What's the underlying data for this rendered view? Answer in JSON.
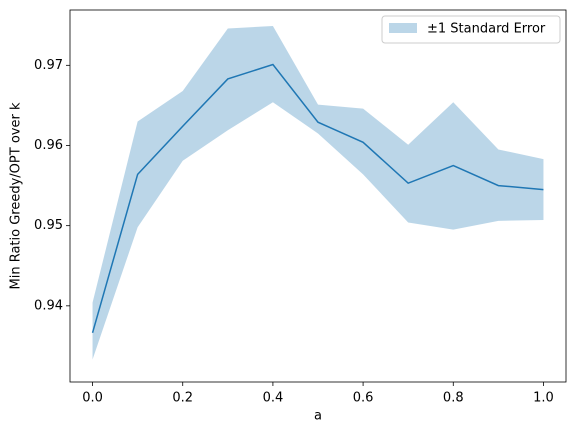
{
  "chart_data": {
    "type": "line",
    "x_label": "a",
    "y_label": "Min Ratio Greedy/OPT over k",
    "x": [
      0,
      0.1,
      0.2,
      0.3,
      0.4,
      0.5,
      0.6,
      0.7,
      0.8,
      0.9,
      1.0
    ],
    "series": [
      {
        "color": "#1f77b4",
        "values": [
          0.93664,
          0.9564,
          0.9624,
          0.9683,
          0.9701,
          0.9629,
          0.9604,
          0.9553,
          0.9575,
          0.955,
          0.9545
        ]
      }
    ],
    "band": {
      "name": "±1 Standard Error",
      "color": "#1f77b4",
      "opacity": 0.3,
      "lower": [
        0.9333,
        0.9498,
        0.9581,
        0.9619,
        0.9654,
        0.9615,
        0.9564,
        0.9504,
        0.9495,
        0.9506,
        0.9507
      ],
      "upper": [
        0.9404,
        0.963,
        0.9668,
        0.9746,
        0.9749,
        0.9651,
        0.9646,
        0.9601,
        0.9654,
        0.9595,
        0.9583
      ]
    },
    "xlim": [
      -0.05,
      1.05
    ],
    "ylim": [
      0.9305,
      0.9769
    ],
    "xticks": [
      {
        "value": 0,
        "label": "0.0"
      },
      0.2,
      0.4,
      0.6,
      0.8,
      {
        "value": 1,
        "label": "1.0"
      }
    ],
    "yticks": [
      0.94,
      0.95,
      0.96,
      0.97
    ],
    "legend": "upper right"
  }
}
